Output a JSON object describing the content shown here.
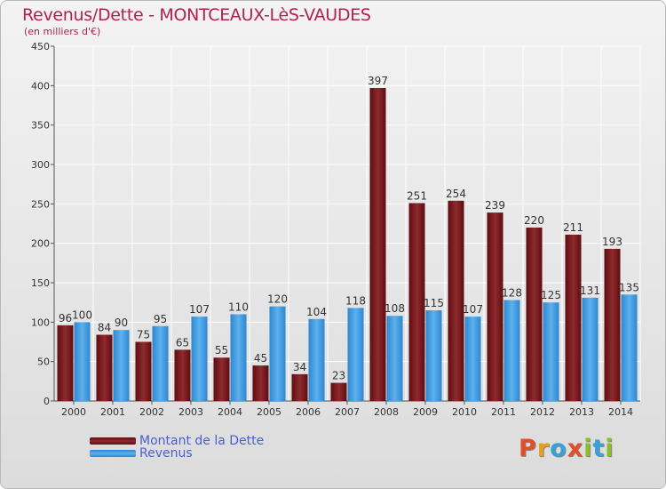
{
  "title": "Revenus/Dette - MONTCEAUX-LèS-VAUDES",
  "subtitle": "(en milliers d'€)",
  "legend": {
    "dette_label": "Montant de la Dette",
    "revenus_label": "Revenus"
  },
  "logo_text": "Proxiti",
  "colors": {
    "dette": "#7a1a1e",
    "revenus": "#3d9ae0",
    "title": "#b22050",
    "legend_text": "#4a5fd0",
    "logo": [
      "#e0502a",
      "#e8a020",
      "#3aa0d8",
      "#e0502a",
      "#8cbd2c",
      "#3aa0d8",
      "#8cbd2c"
    ]
  },
  "chart_data": {
    "type": "bar",
    "categories": [
      "2000",
      "2001",
      "2002",
      "2003",
      "2004",
      "2005",
      "2006",
      "2007",
      "2008",
      "2009",
      "2010",
      "2011",
      "2012",
      "2013",
      "2014"
    ],
    "series": [
      {
        "name": "Montant de la Dette",
        "values": [
          96,
          84,
          75,
          65,
          55,
          45,
          34,
          23,
          397,
          251,
          254,
          239,
          220,
          211,
          193
        ]
      },
      {
        "name": "Revenus",
        "values": [
          100,
          90,
          95,
          107,
          110,
          120,
          104,
          118,
          108,
          115,
          107,
          128,
          125,
          131,
          135
        ]
      }
    ],
    "ylim": [
      0,
      450
    ],
    "yticks": [
      0,
      50,
      100,
      150,
      200,
      250,
      300,
      350,
      400,
      450
    ],
    "grid": true
  }
}
